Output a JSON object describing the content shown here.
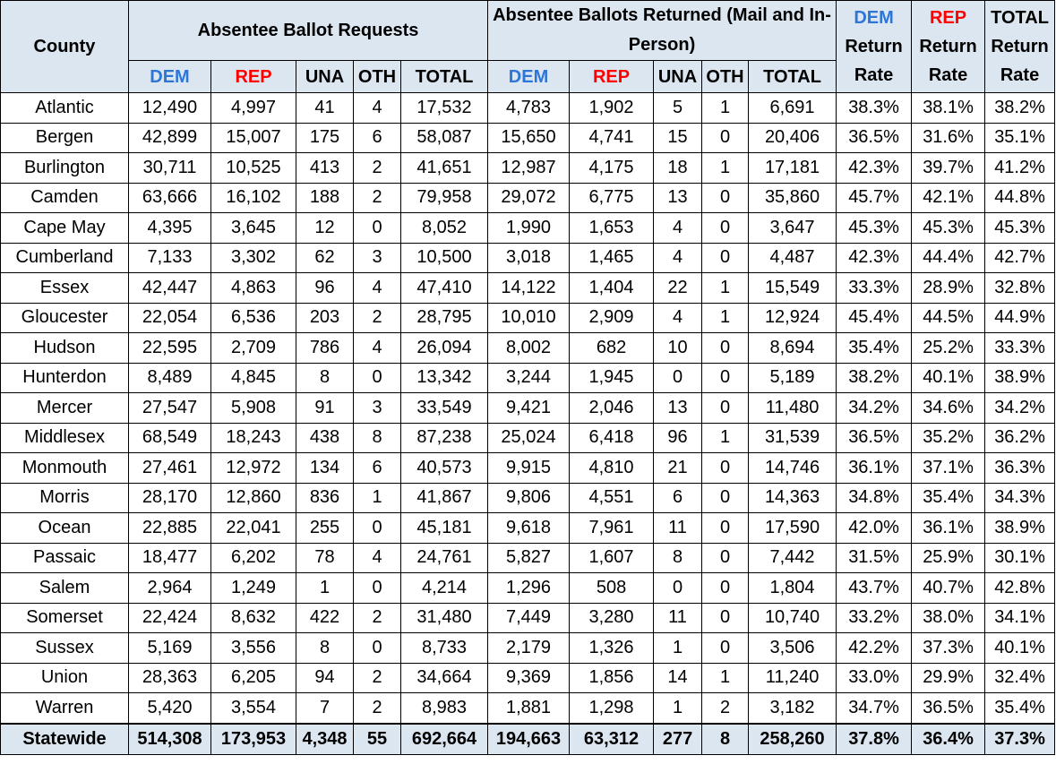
{
  "colors": {
    "header_bg": "#dce6f1",
    "dem": "#2e75d8",
    "rep": "#ff0000",
    "border": "#000000"
  },
  "headers": {
    "county": "County",
    "requests_group": "Absentee Ballot Requests",
    "returned_group": "Absentee Ballots Returned (Mail and In-Person)",
    "dem_rate": [
      "DEM",
      "Return",
      "Rate"
    ],
    "rep_rate": [
      "REP",
      "Return",
      "Rate"
    ],
    "total_rate": [
      "TOTAL",
      "Return",
      "Rate"
    ],
    "sub": [
      "DEM",
      "REP",
      "UNA",
      "OTH",
      "TOTAL"
    ]
  },
  "rows": [
    [
      "Atlantic",
      "12,490",
      "4,997",
      "41",
      "4",
      "17,532",
      "4,783",
      "1,902",
      "5",
      "1",
      "6,691",
      "38.3%",
      "38.1%",
      "38.2%"
    ],
    [
      "Bergen",
      "42,899",
      "15,007",
      "175",
      "6",
      "58,087",
      "15,650",
      "4,741",
      "15",
      "0",
      "20,406",
      "36.5%",
      "31.6%",
      "35.1%"
    ],
    [
      "Burlington",
      "30,711",
      "10,525",
      "413",
      "2",
      "41,651",
      "12,987",
      "4,175",
      "18",
      "1",
      "17,181",
      "42.3%",
      "39.7%",
      "41.2%"
    ],
    [
      "Camden",
      "63,666",
      "16,102",
      "188",
      "2",
      "79,958",
      "29,072",
      "6,775",
      "13",
      "0",
      "35,860",
      "45.7%",
      "42.1%",
      "44.8%"
    ],
    [
      "Cape May",
      "4,395",
      "3,645",
      "12",
      "0",
      "8,052",
      "1,990",
      "1,653",
      "4",
      "0",
      "3,647",
      "45.3%",
      "45.3%",
      "45.3%"
    ],
    [
      "Cumberland",
      "7,133",
      "3,302",
      "62",
      "3",
      "10,500",
      "3,018",
      "1,465",
      "4",
      "0",
      "4,487",
      "42.3%",
      "44.4%",
      "42.7%"
    ],
    [
      "Essex",
      "42,447",
      "4,863",
      "96",
      "4",
      "47,410",
      "14,122",
      "1,404",
      "22",
      "1",
      "15,549",
      "33.3%",
      "28.9%",
      "32.8%"
    ],
    [
      "Gloucester",
      "22,054",
      "6,536",
      "203",
      "2",
      "28,795",
      "10,010",
      "2,909",
      "4",
      "1",
      "12,924",
      "45.4%",
      "44.5%",
      "44.9%"
    ],
    [
      "Hudson",
      "22,595",
      "2,709",
      "786",
      "4",
      "26,094",
      "8,002",
      "682",
      "10",
      "0",
      "8,694",
      "35.4%",
      "25.2%",
      "33.3%"
    ],
    [
      "Hunterdon",
      "8,489",
      "4,845",
      "8",
      "0",
      "13,342",
      "3,244",
      "1,945",
      "0",
      "0",
      "5,189",
      "38.2%",
      "40.1%",
      "38.9%"
    ],
    [
      "Mercer",
      "27,547",
      "5,908",
      "91",
      "3",
      "33,549",
      "9,421",
      "2,046",
      "13",
      "0",
      "11,480",
      "34.2%",
      "34.6%",
      "34.2%"
    ],
    [
      "Middlesex",
      "68,549",
      "18,243",
      "438",
      "8",
      "87,238",
      "25,024",
      "6,418",
      "96",
      "1",
      "31,539",
      "36.5%",
      "35.2%",
      "36.2%"
    ],
    [
      "Monmouth",
      "27,461",
      "12,972",
      "134",
      "6",
      "40,573",
      "9,915",
      "4,810",
      "21",
      "0",
      "14,746",
      "36.1%",
      "37.1%",
      "36.3%"
    ],
    [
      "Morris",
      "28,170",
      "12,860",
      "836",
      "1",
      "41,867",
      "9,806",
      "4,551",
      "6",
      "0",
      "14,363",
      "34.8%",
      "35.4%",
      "34.3%"
    ],
    [
      "Ocean",
      "22,885",
      "22,041",
      "255",
      "0",
      "45,181",
      "9,618",
      "7,961",
      "11",
      "0",
      "17,590",
      "42.0%",
      "36.1%",
      "38.9%"
    ],
    [
      "Passaic",
      "18,477",
      "6,202",
      "78",
      "4",
      "24,761",
      "5,827",
      "1,607",
      "8",
      "0",
      "7,442",
      "31.5%",
      "25.9%",
      "30.1%"
    ],
    [
      "Salem",
      "2,964",
      "1,249",
      "1",
      "0",
      "4,214",
      "1,296",
      "508",
      "0",
      "0",
      "1,804",
      "43.7%",
      "40.7%",
      "42.8%"
    ],
    [
      "Somerset",
      "22,424",
      "8,632",
      "422",
      "2",
      "31,480",
      "7,449",
      "3,280",
      "11",
      "0",
      "10,740",
      "33.2%",
      "38.0%",
      "34.1%"
    ],
    [
      "Sussex",
      "5,169",
      "3,556",
      "8",
      "0",
      "8,733",
      "2,179",
      "1,326",
      "1",
      "0",
      "3,506",
      "42.2%",
      "37.3%",
      "40.1%"
    ],
    [
      "Union",
      "28,363",
      "6,205",
      "94",
      "2",
      "34,664",
      "9,369",
      "1,856",
      "14",
      "1",
      "11,240",
      "33.0%",
      "29.9%",
      "32.4%"
    ],
    [
      "Warren",
      "5,420",
      "3,554",
      "7",
      "2",
      "8,983",
      "1,881",
      "1,298",
      "1",
      "2",
      "3,182",
      "34.7%",
      "36.5%",
      "35.4%"
    ]
  ],
  "statewide": [
    "Statewide",
    "514,308",
    "173,953",
    "4,348",
    "55",
    "692,664",
    "194,663",
    "63,312",
    "277",
    "8",
    "258,260",
    "37.8%",
    "36.4%",
    "37.3%"
  ]
}
